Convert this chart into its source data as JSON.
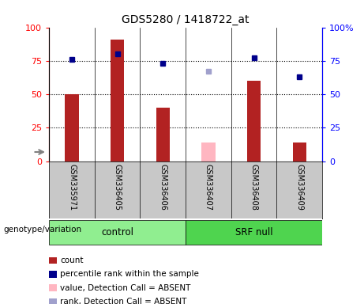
{
  "title": "GDS5280 / 1418722_at",
  "samples": [
    "GSM335971",
    "GSM336405",
    "GSM336406",
    "GSM336407",
    "GSM336408",
    "GSM336409"
  ],
  "count_values": [
    50,
    91,
    40,
    null,
    60,
    14
  ],
  "count_absent_values": [
    null,
    null,
    null,
    14,
    null,
    null
  ],
  "rank_values": [
    76,
    80,
    73,
    null,
    77,
    63
  ],
  "rank_absent_values": [
    null,
    null,
    null,
    67,
    null,
    null
  ],
  "yticks": [
    0,
    25,
    50,
    75,
    100
  ],
  "bar_color": "#B22222",
  "bar_absent_color": "#FFB6C1",
  "rank_color": "#00008B",
  "rank_absent_color": "#A0A0CC",
  "control_color": "#90EE90",
  "srf_color": "#4FD44F",
  "tick_area_bg": "#C8C8C8",
  "legend_items": [
    {
      "label": "count",
      "color": "#B22222"
    },
    {
      "label": "percentile rank within the sample",
      "color": "#00008B"
    },
    {
      "label": "value, Detection Call = ABSENT",
      "color": "#FFB6C1"
    },
    {
      "label": "rank, Detection Call = ABSENT",
      "color": "#A0A0CC"
    }
  ],
  "bar_width": 0.3
}
